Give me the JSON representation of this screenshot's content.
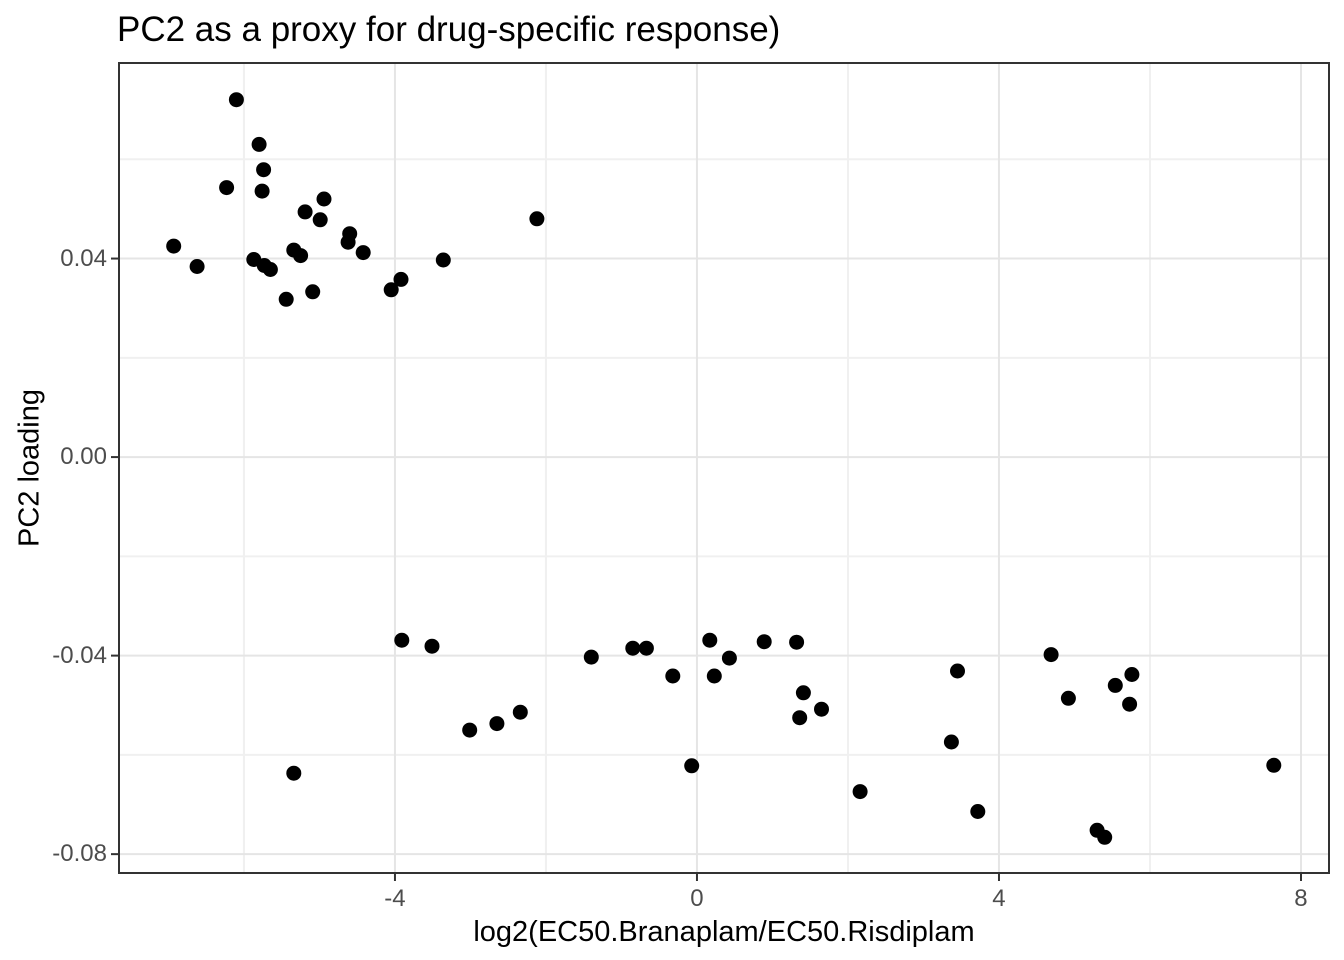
{
  "style": {
    "background": "#ffffff",
    "grid_major_color": "#e5e5e5",
    "grid_minor_color": "#f0f0f0",
    "panel_border_color": "#333333",
    "tick_mark_color": "#333333",
    "tick_label_color": "#4d4d4d",
    "title_color": "#000000"
  },
  "chart_data": {
    "type": "scatter",
    "title": "PC2 as a proxy for drug-specific response)",
    "xlabel": "log2(EC50.Branaplam/EC50.Risdiplam",
    "ylabel": "PC2 loading",
    "xlim": [
      -7.655,
      8.371
    ],
    "ylim": [
      -0.0838,
      0.0794
    ],
    "grid": true,
    "legend": "none",
    "point_color": "#000000",
    "point_radius": 7.5,
    "x_major_ticks": [
      {
        "value": -4,
        "label": "-4"
      },
      {
        "value": 0,
        "label": "0"
      },
      {
        "value": 4,
        "label": "4"
      },
      {
        "value": 8,
        "label": "8"
      }
    ],
    "x_minor_ticks": [
      -6,
      -2,
      2,
      6
    ],
    "y_major_ticks": [
      {
        "value": 0.04,
        "label": "0.04"
      },
      {
        "value": 0.0,
        "label": "0.00"
      },
      {
        "value": -0.04,
        "label": "-0.04"
      },
      {
        "value": -0.08,
        "label": "-0.08"
      }
    ],
    "y_minor_ticks": [
      0.06,
      0.02,
      -0.02,
      -0.06
    ],
    "points": [
      {
        "x": -6.1,
        "y": 0.072
      },
      {
        "x": -5.8,
        "y": 0.063
      },
      {
        "x": -5.74,
        "y": 0.0579
      },
      {
        "x": -6.23,
        "y": 0.0543
      },
      {
        "x": -5.76,
        "y": 0.0536
      },
      {
        "x": -4.94,
        "y": 0.052
      },
      {
        "x": -5.19,
        "y": 0.0494
      },
      {
        "x": -4.99,
        "y": 0.0478
      },
      {
        "x": -2.12,
        "y": 0.048
      },
      {
        "x": -4.6,
        "y": 0.045
      },
      {
        "x": -4.62,
        "y": 0.0433
      },
      {
        "x": -6.93,
        "y": 0.0425
      },
      {
        "x": -5.34,
        "y": 0.0417
      },
      {
        "x": -5.25,
        "y": 0.0406
      },
      {
        "x": -4.42,
        "y": 0.0412
      },
      {
        "x": -3.36,
        "y": 0.0397
      },
      {
        "x": -5.87,
        "y": 0.0398
      },
      {
        "x": -5.73,
        "y": 0.0386
      },
      {
        "x": -5.65,
        "y": 0.0378
      },
      {
        "x": -6.62,
        "y": 0.0384
      },
      {
        "x": -3.92,
        "y": 0.0358
      },
      {
        "x": -4.05,
        "y": 0.0337
      },
      {
        "x": -5.09,
        "y": 0.0333
      },
      {
        "x": -5.44,
        "y": 0.0318
      },
      {
        "x": -3.91,
        "y": -0.0369
      },
      {
        "x": -3.51,
        "y": -0.0381
      },
      {
        "x": -3.01,
        "y": -0.055
      },
      {
        "x": -2.65,
        "y": -0.0537
      },
      {
        "x": -2.34,
        "y": -0.0514
      },
      {
        "x": -5.34,
        "y": -0.0637
      },
      {
        "x": -1.4,
        "y": -0.0403
      },
      {
        "x": -0.85,
        "y": -0.0385
      },
      {
        "x": -0.67,
        "y": -0.0385
      },
      {
        "x": -0.32,
        "y": -0.0441
      },
      {
        "x": 0.17,
        "y": -0.0369
      },
      {
        "x": 0.23,
        "y": -0.0441
      },
      {
        "x": 0.43,
        "y": -0.0405
      },
      {
        "x": 0.89,
        "y": -0.0372
      },
      {
        "x": 1.32,
        "y": -0.0373
      },
      {
        "x": 1.41,
        "y": -0.0475
      },
      {
        "x": 1.65,
        "y": -0.0508
      },
      {
        "x": 1.36,
        "y": -0.0525
      },
      {
        "x": -0.07,
        "y": -0.0622
      },
      {
        "x": 2.16,
        "y": -0.0674
      },
      {
        "x": 3.45,
        "y": -0.0431
      },
      {
        "x": 4.69,
        "y": -0.0398
      },
      {
        "x": 4.92,
        "y": -0.0486
      },
      {
        "x": 5.54,
        "y": -0.046
      },
      {
        "x": 5.76,
        "y": -0.0438
      },
      {
        "x": 5.73,
        "y": -0.0498
      },
      {
        "x": 3.37,
        "y": -0.0574
      },
      {
        "x": 3.72,
        "y": -0.0714
      },
      {
        "x": 5.3,
        "y": -0.0752
      },
      {
        "x": 5.4,
        "y": -0.0766
      },
      {
        "x": 7.64,
        "y": -0.0621
      }
    ]
  }
}
